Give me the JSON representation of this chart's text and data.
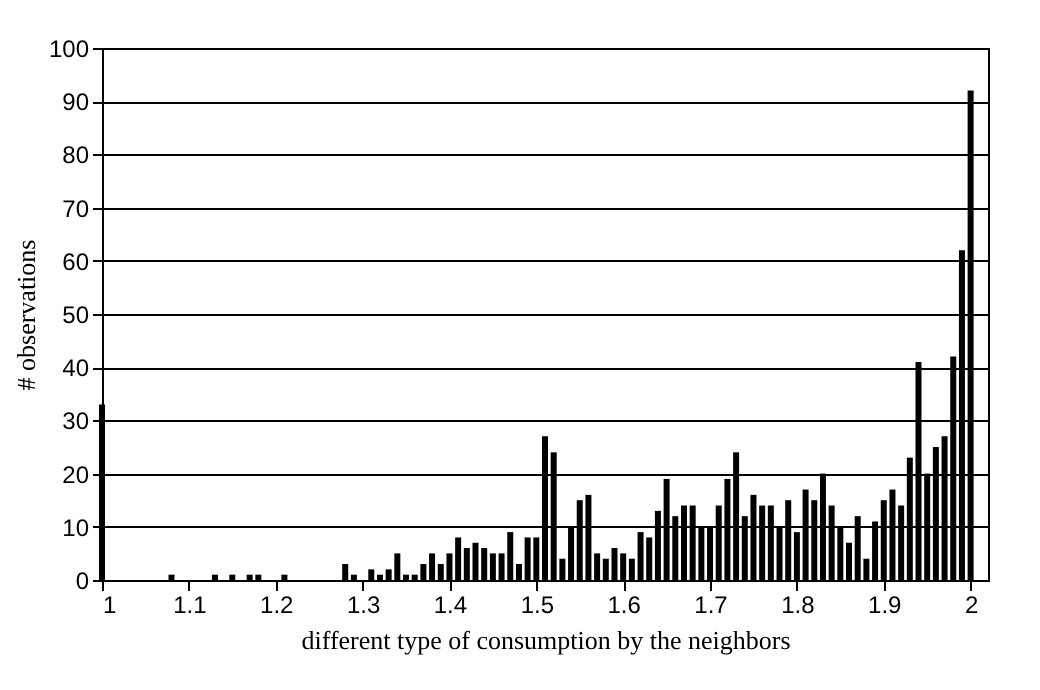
{
  "chart_data": {
    "type": "bar",
    "xlabel": "different type of consumption by the neighbors",
    "ylabel": "# observations",
    "color": "#000000",
    "x": [
      1,
      1.08,
      1.13,
      1.15,
      1.17,
      1.18,
      1.21,
      1.28,
      1.29,
      1.31,
      1.32,
      1.33,
      1.34,
      1.35,
      1.36,
      1.37,
      1.38,
      1.39,
      1.4,
      1.41,
      1.42,
      1.43,
      1.44,
      1.45,
      1.46,
      1.47,
      1.48,
      1.49,
      1.5,
      1.51,
      1.52,
      1.53,
      1.54,
      1.55,
      1.56,
      1.57,
      1.58,
      1.59,
      1.6,
      1.61,
      1.62,
      1.63,
      1.64,
      1.65,
      1.66,
      1.67,
      1.68,
      1.69,
      1.7,
      1.71,
      1.72,
      1.73,
      1.74,
      1.75,
      1.76,
      1.77,
      1.78,
      1.79,
      1.8,
      1.81,
      1.82,
      1.83,
      1.84,
      1.85,
      1.86,
      1.87,
      1.88,
      1.89,
      1.9,
      1.91,
      1.92,
      1.93,
      1.94,
      1.95,
      1.96,
      1.97,
      1.98,
      1.99,
      2
    ],
    "values": [
      33,
      1,
      1,
      1,
      1,
      1,
      1,
      3,
      1,
      2,
      1,
      2,
      5,
      1,
      1,
      3,
      5,
      3,
      5,
      8,
      6,
      7,
      6,
      5,
      5,
      9,
      3,
      8,
      8,
      27,
      24,
      4,
      10,
      15,
      16,
      5,
      4,
      6,
      5,
      4,
      9,
      8,
      13,
      19,
      12,
      14,
      14,
      10,
      10,
      14,
      19,
      24,
      12,
      16,
      14,
      14,
      10,
      15,
      9,
      17,
      15,
      20,
      14,
      10,
      7,
      12,
      4,
      11,
      15,
      17,
      14,
      23,
      41,
      20,
      25,
      27,
      42,
      62,
      92
    ],
    "xlim": [
      1,
      2.02
    ],
    "xticks": [
      1,
      1.1,
      1.2,
      1.3,
      1.4,
      1.5,
      1.6,
      1.7,
      1.8,
      1.9,
      2
    ],
    "ylim": [
      0,
      100
    ],
    "yticks": [
      0,
      10,
      20,
      30,
      40,
      50,
      60,
      70,
      80,
      90,
      100
    ],
    "grid": "y"
  }
}
